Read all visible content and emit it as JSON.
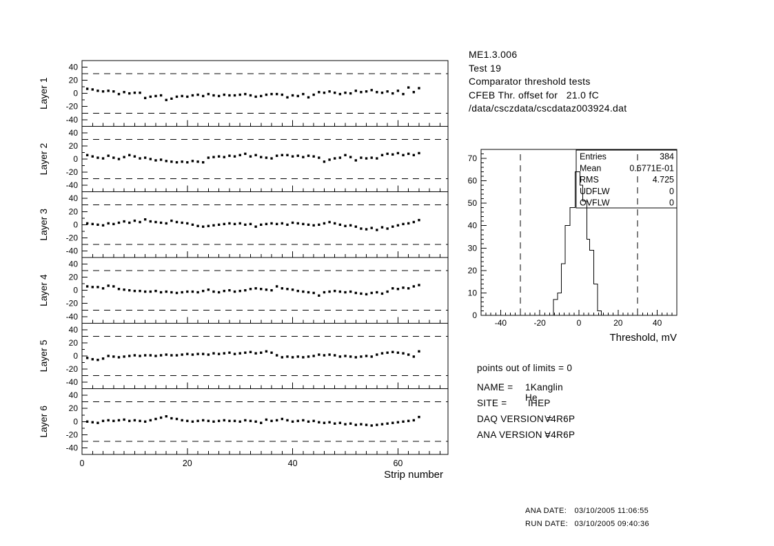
{
  "page": {
    "bg": "#ffffff",
    "fg": "#000000"
  },
  "header": {
    "lines": [
      "ME1.3.006",
      "Test 19",
      "Comparator threshold tests",
      "CFEB Thr. offset for   21.0 fC",
      "/data/csczdata/cscdataz003924.dat"
    ]
  },
  "info": {
    "points_line": "points out of limits = 0",
    "rows": [
      {
        "label": "NAME =",
        "value": "1Kanglin He"
      },
      {
        "label": "SITE =",
        "value": "IHEP"
      },
      {
        "label": "DAQ VERSION =",
        "value": "V4R6P"
      },
      {
        "label": "ANA VERSION =",
        "value": "V4R6P"
      }
    ]
  },
  "footer": {
    "rows": [
      {
        "label": "ANA DATE:",
        "value": "03/10/2005 11:06:55"
      },
      {
        "label": "RUN DATE:",
        "value": "03/10/2005 09:40:36"
      }
    ]
  },
  "chart_data": [
    {
      "type": "scatter",
      "title": "",
      "xlabel": "Strip number",
      "xlim": [
        0,
        69.5
      ],
      "x_ticks": [
        0,
        20,
        40,
        60
      ],
      "x_minor_step": 2,
      "ylim": [
        -50,
        50
      ],
      "y_ticks": [
        -40,
        -20,
        0,
        20,
        40
      ],
      "y_minor_step": 10,
      "limit_lines": [
        -30,
        30
      ],
      "grid": false,
      "marker": "small-filled-square",
      "panels": [
        {
          "label": "Layer 1",
          "values": [
            7,
            6,
            4,
            3,
            4,
            3,
            -1,
            2,
            0,
            1,
            1,
            -7,
            -5,
            -4,
            -3,
            -10,
            -8,
            -5,
            -4,
            -5,
            -3,
            -2,
            -4,
            -1,
            -3,
            -4,
            -2,
            -3,
            -3,
            -2,
            -1,
            -3,
            -5,
            -4,
            -2,
            -1,
            -1,
            -2,
            -6,
            -3,
            -4,
            -1,
            -6,
            -2,
            2,
            1,
            3,
            1,
            -1,
            1,
            0,
            4,
            2,
            3,
            5,
            2,
            1,
            3,
            0,
            4,
            -1,
            9,
            2,
            8
          ]
        },
        {
          "label": "Layer 2",
          "values": [
            6,
            4,
            2,
            1,
            5,
            2,
            0,
            3,
            6,
            4,
            1,
            2,
            0,
            -2,
            -1,
            -3,
            -4,
            -5,
            -4,
            -5,
            -3,
            -4,
            -5,
            2,
            3,
            4,
            3,
            5,
            4,
            6,
            8,
            4,
            6,
            3,
            2,
            1,
            5,
            6,
            6,
            4,
            5,
            3,
            5,
            4,
            2,
            -4,
            -1,
            1,
            2,
            6,
            3,
            -2,
            2,
            1,
            2,
            1,
            6,
            8,
            7,
            9,
            6,
            8,
            6,
            9
          ]
        },
        {
          "label": "Layer 3",
          "values": [
            2,
            1,
            0,
            -1,
            2,
            1,
            3,
            5,
            3,
            6,
            4,
            8,
            5,
            4,
            3,
            2,
            6,
            4,
            3,
            2,
            0,
            -2,
            -3,
            -2,
            -1,
            0,
            1,
            2,
            1,
            2,
            0,
            1,
            -3,
            0,
            1,
            2,
            1,
            2,
            0,
            3,
            2,
            1,
            0,
            -1,
            0,
            2,
            4,
            2,
            0,
            -2,
            -1,
            -3,
            -6,
            -7,
            -5,
            -8,
            -4,
            -6,
            -3,
            -1,
            1,
            2,
            4,
            7
          ]
        },
        {
          "label": "Layer 4",
          "values": [
            6,
            5,
            5,
            3,
            7,
            6,
            2,
            1,
            0,
            -1,
            -1,
            -2,
            -2,
            -1,
            -3,
            -2,
            -3,
            -4,
            -3,
            -2,
            -2,
            -3,
            -1,
            1,
            -2,
            -3,
            -1,
            0,
            -2,
            -1,
            0,
            2,
            3,
            2,
            1,
            0,
            6,
            3,
            2,
            1,
            -1,
            -2,
            -3,
            -4,
            -8,
            -3,
            -2,
            -1,
            -2,
            -3,
            -2,
            -4,
            -5,
            -6,
            -4,
            -3,
            -5,
            -2,
            3,
            2,
            4,
            3,
            6,
            8
          ]
        },
        {
          "label": "Layer 5",
          "values": [
            -3,
            -5,
            -6,
            -4,
            0,
            -1,
            -2,
            -1,
            0,
            1,
            0,
            1,
            1,
            0,
            1,
            2,
            1,
            1,
            2,
            3,
            2,
            3,
            3,
            2,
            4,
            3,
            4,
            5,
            3,
            4,
            5,
            6,
            4,
            5,
            7,
            5,
            1,
            -2,
            -1,
            -2,
            -1,
            -2,
            -1,
            0,
            2,
            1,
            2,
            1,
            -1,
            0,
            -1,
            -2,
            -1,
            0,
            -1,
            2,
            4,
            5,
            6,
            5,
            4,
            2,
            -1,
            7
          ]
        },
        {
          "label": "Layer 6",
          "values": [
            0,
            -1,
            -2,
            1,
            2,
            1,
            2,
            3,
            1,
            2,
            1,
            0,
            2,
            4,
            6,
            8,
            5,
            4,
            2,
            1,
            0,
            1,
            2,
            1,
            0,
            1,
            2,
            1,
            1,
            0,
            2,
            1,
            0,
            -2,
            3,
            1,
            2,
            4,
            2,
            0,
            1,
            2,
            0,
            1,
            -1,
            -2,
            -1,
            -3,
            -2,
            -4,
            -3,
            -5,
            -4,
            -5,
            -6,
            -5,
            -4,
            -3,
            -2,
            -1,
            0,
            1,
            2,
            7
          ]
        }
      ]
    },
    {
      "type": "histogram-step",
      "title": "",
      "xlabel": "Threshold, mV",
      "xlim": [
        -50,
        50
      ],
      "x_ticks": [
        -40,
        -20,
        0,
        20,
        40
      ],
      "x_minor_step": 2.5,
      "ylim": [
        0,
        74
      ],
      "y_ticks": [
        0,
        10,
        20,
        30,
        40,
        50,
        60,
        70
      ],
      "y_minor_step": 2,
      "limit_lines": [
        -30,
        30
      ],
      "grid": false,
      "steps": [
        [
          -13,
          0
        ],
        [
          -13,
          7
        ],
        [
          -11,
          7
        ],
        [
          -11,
          10
        ],
        [
          -9,
          10
        ],
        [
          -9,
          23
        ],
        [
          -7,
          23
        ],
        [
          -7,
          40
        ],
        [
          -4.5,
          40
        ],
        [
          -4.5,
          48
        ],
        [
          -2,
          48
        ],
        [
          -2,
          64
        ],
        [
          0.5,
          64
        ],
        [
          0.5,
          58
        ],
        [
          2,
          58
        ],
        [
          2,
          51
        ],
        [
          4,
          51
        ],
        [
          4,
          34
        ],
        [
          5.5,
          34
        ],
        [
          5.5,
          29
        ],
        [
          7.5,
          29
        ],
        [
          7.5,
          14
        ],
        [
          9.5,
          14
        ],
        [
          9.5,
          2
        ],
        [
          11.5,
          2
        ],
        [
          11.5,
          0
        ]
      ],
      "stats": {
        "labels": [
          "Entries",
          "Mean",
          "RMS",
          "UDFLW",
          "OVFLW"
        ],
        "values": [
          "384",
          "0.6771E-01",
          "4.725",
          "0",
          "0"
        ]
      }
    }
  ]
}
